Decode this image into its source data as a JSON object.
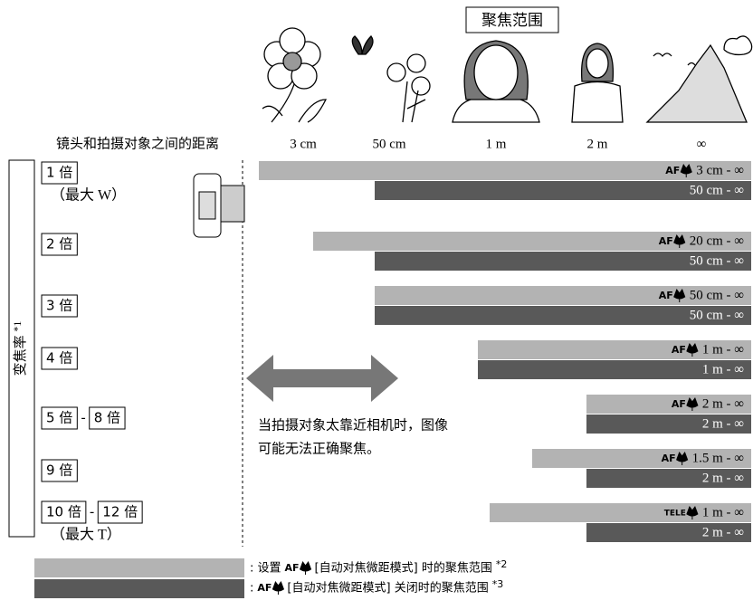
{
  "header": {
    "title": "聚焦范围"
  },
  "distance_axis": {
    "label": "镜头和拍摄对象之间的距离",
    "marks": [
      "3 cm",
      "50 cm",
      "1 m",
      "2 m",
      "∞"
    ]
  },
  "zoom_axis": {
    "label": "变焦率",
    "footnote": "*1"
  },
  "rows": [
    {
      "zoom": [
        "1 倍"
      ],
      "zoom_note": "（最大 W）",
      "macro_mode": "AF",
      "macro_range": "3 cm - ∞",
      "normal_range": "50 cm - ∞"
    },
    {
      "zoom": [
        "2 倍"
      ],
      "macro_mode": "AF",
      "macro_range": "20 cm - ∞",
      "normal_range": "50 cm - ∞"
    },
    {
      "zoom": [
        "3 倍"
      ],
      "macro_mode": "AF",
      "macro_range": "50 cm - ∞",
      "normal_range": "50 cm - ∞"
    },
    {
      "zoom": [
        "4 倍"
      ],
      "macro_mode": "AF",
      "macro_range": "1 m - ∞",
      "normal_range": "1 m - ∞"
    },
    {
      "zoom": [
        "5 倍",
        "8 倍"
      ],
      "separator": "-",
      "macro_mode": "AF",
      "macro_range": "2 m - ∞",
      "normal_range": "2 m - ∞"
    },
    {
      "zoom": [
        "9 倍"
      ],
      "macro_mode": "AF",
      "macro_range": "1.5 m - ∞",
      "normal_range": "2 m - ∞"
    },
    {
      "zoom": [
        "10 倍",
        "12 倍"
      ],
      "separator": "-",
      "zoom_note": "（最大 T）",
      "macro_mode": "TELE",
      "macro_range": "1 m - ∞",
      "normal_range": "2 m - ∞"
    }
  ],
  "note": [
    "当拍摄对象太靠近相机时，图像",
    "可能无法正确聚焦。"
  ],
  "legend": [
    {
      "before": ": 设置",
      "mode": "AF",
      "after": "[自动对焦微距模式] 时的聚焦范围",
      "footnote": "*2"
    },
    {
      "before": ":",
      "mode": "AF",
      "after": "[自动对焦微距模式] 关闭时的聚焦范围",
      "footnote": "*3"
    }
  ]
}
